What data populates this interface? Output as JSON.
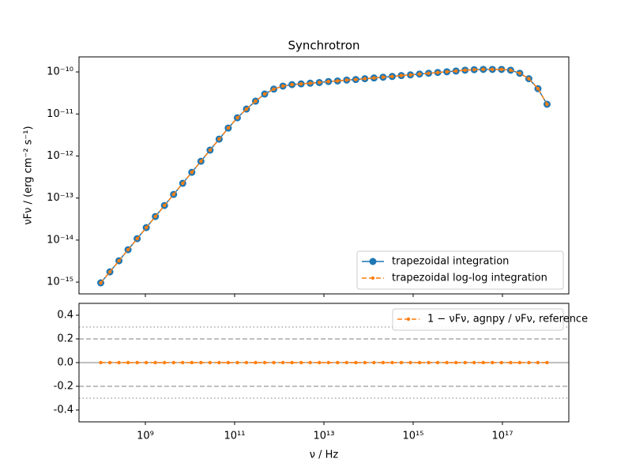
{
  "chart_data": [
    {
      "type": "line",
      "title": "Synchrotron",
      "ylabel": "νFν / (erg cm⁻² s⁻¹)",
      "xscale": "log",
      "yscale": "log",
      "xlim": [
        32600000.0,
        3.07e+18
      ],
      "ylim": [
        5.25e-16,
        2.28e-10
      ],
      "yticks": [
        {
          "value": 1e-15,
          "label": "10⁻¹⁵"
        },
        {
          "value": 1e-14,
          "label": "10⁻¹⁴"
        },
        {
          "value": 1e-13,
          "label": "10⁻¹³"
        },
        {
          "value": 1e-12,
          "label": "10⁻¹²"
        },
        {
          "value": 1e-11,
          "label": "10⁻¹¹"
        },
        {
          "value": 1e-10,
          "label": "10⁻¹⁰"
        }
      ],
      "legend": "lower right",
      "x": [
        100000000.0,
        160000000.0,
        256000000.0,
        409500000.0,
        655100000.0,
        1048000000.0,
        1677000000.0,
        2683000000.0,
        4292000000.0,
        6866000000.0,
        10990000000.0,
        17580000000.0,
        28120000000.0,
        44980000000.0,
        71970000000.0,
        115100000000.0,
        184200000000.0,
        294700000000.0,
        471500000000.0,
        754300000000.0,
        1207000000000.0,
        1931000000000.0,
        3089000000000.0,
        4942000000000.0,
        7906000000000.0,
        12650000000000.0,
        20240000000000.0,
        32370000000000.0,
        51790000000000.0,
        82860000000000.0,
        132600000000000.0,
        212100000000000.0,
        339300000000000.0,
        542900000000000.0,
        868500000000000.0,
        1389000000000000.0,
        2223000000000000.0,
        3556000000000000.0,
        5690000000000000.0,
        9103000000000000.0,
        1.456e+16,
        2.33e+16,
        3.728e+16,
        5.964e+16,
        9.541e+16,
        1.526e+17,
        2.442e+17,
        3.907e+17,
        6.251e+17,
        1e+18
      ],
      "series": [
        {
          "name": "trapezoidal integration",
          "color": "#1f77b4",
          "linestyle": "solid",
          "marker": "large",
          "values": [
            9.6e-16,
            1.75e-15,
            3.22e-15,
            5.9e-15,
            1.08e-14,
            1.98e-14,
            3.63e-14,
            6.65e-14,
            1.22e-13,
            2.24e-13,
            4.1e-13,
            7.5e-13,
            1.38e-12,
            2.52e-12,
            4.62e-12,
            8.1e-12,
            1.31e-11,
            2.02e-11,
            2.98e-11,
            3.9e-11,
            4.6e-11,
            5e-11,
            5.2e-11,
            5.4e-11,
            5.6e-11,
            5.9e-11,
            6.1e-11,
            6.4e-11,
            6.6e-11,
            6.9e-11,
            7.2e-11,
            7.5e-11,
            7.8e-11,
            8.2e-11,
            8.5e-11,
            8.9e-11,
            9.3e-11,
            9.7e-11,
            1.01e-10,
            1.05e-10,
            1.1e-10,
            1.13e-10,
            1.15e-10,
            1.15e-10,
            1.15e-10,
            1.1e-10,
            9.3e-11,
            6.9e-11,
            4e-11,
            1.7e-11
          ]
        },
        {
          "name": "trapezoidal log-log integration",
          "color": "#ff7f0e",
          "linestyle": "dashed",
          "marker": "small",
          "values": [
            9.6e-16,
            1.75e-15,
            3.22e-15,
            5.9e-15,
            1.08e-14,
            1.98e-14,
            3.63e-14,
            6.65e-14,
            1.22e-13,
            2.24e-13,
            4.1e-13,
            7.5e-13,
            1.38e-12,
            2.52e-12,
            4.62e-12,
            8.1e-12,
            1.31e-11,
            2.02e-11,
            2.98e-11,
            3.9e-11,
            4.6e-11,
            5e-11,
            5.2e-11,
            5.4e-11,
            5.6e-11,
            5.9e-11,
            6.1e-11,
            6.4e-11,
            6.6e-11,
            6.9e-11,
            7.2e-11,
            7.5e-11,
            7.8e-11,
            8.2e-11,
            8.5e-11,
            8.9e-11,
            9.3e-11,
            9.7e-11,
            1.01e-10,
            1.05e-10,
            1.1e-10,
            1.13e-10,
            1.15e-10,
            1.15e-10,
            1.15e-10,
            1.1e-10,
            9.3e-11,
            6.9e-11,
            4e-11,
            1.7e-11
          ]
        }
      ]
    },
    {
      "type": "line",
      "xlabel": "ν / Hz",
      "xscale": "log",
      "yscale": "linear",
      "xlim": [
        32600000.0,
        3.07e+18
      ],
      "ylim": [
        -0.5,
        0.5
      ],
      "xticks": [
        {
          "value": 1000000000.0,
          "label": "10⁹"
        },
        {
          "value": 100000000000.0,
          "label": "10¹¹"
        },
        {
          "value": 10000000000000.0,
          "label": "10¹³"
        },
        {
          "value": 1000000000000000.0,
          "label": "10¹⁵"
        },
        {
          "value": 1e+17,
          "label": "10¹⁷"
        }
      ],
      "yticks": [
        -0.4,
        -0.2,
        {
          "value": 0,
          "label": "0.0"
        },
        0.2,
        0.4
      ],
      "hlines": [
        {
          "y": 0,
          "style": "solid"
        },
        {
          "y": 0.2,
          "style": "dashed"
        },
        {
          "y": -0.2,
          "style": "dashed"
        },
        {
          "y": 0.3,
          "style": "dotted"
        },
        {
          "y": -0.3,
          "style": "dotted"
        }
      ],
      "legend": "upper right",
      "x": [
        100000000.0,
        160000000.0,
        256000000.0,
        409500000.0,
        655100000.0,
        1048000000.0,
        1677000000.0,
        2683000000.0,
        4292000000.0,
        6866000000.0,
        10990000000.0,
        17580000000.0,
        28120000000.0,
        44980000000.0,
        71970000000.0,
        115100000000.0,
        184200000000.0,
        294700000000.0,
        471500000000.0,
        754300000000.0,
        1207000000000.0,
        1931000000000.0,
        3089000000000.0,
        4942000000000.0,
        7906000000000.0,
        12650000000000.0,
        20240000000000.0,
        32370000000000.0,
        51790000000000.0,
        82860000000000.0,
        132600000000000.0,
        212100000000000.0,
        339300000000000.0,
        542900000000000.0,
        868500000000000.0,
        1389000000000000.0,
        2223000000000000.0,
        3556000000000000.0,
        5690000000000000.0,
        9103000000000000.0,
        1.456e+16,
        2.33e+16,
        3.728e+16,
        5.964e+16,
        9.541e+16,
        1.526e+17,
        2.442e+17,
        3.907e+17,
        6.251e+17,
        1e+18
      ],
      "series": [
        {
          "name": "1 − νFν, agnpy / νFν, reference",
          "color": "#ff7f0e",
          "linestyle": "dashed",
          "marker": "small",
          "values": [
            0,
            0,
            0,
            0,
            0,
            0,
            0,
            0,
            0,
            0,
            0,
            0,
            0,
            0,
            0,
            0,
            0,
            0,
            0,
            0,
            0,
            0,
            0,
            0,
            0,
            0,
            0,
            0,
            0,
            0,
            0,
            0,
            0,
            0,
            0,
            0,
            0,
            0,
            0,
            0,
            0,
            0,
            0,
            0,
            0,
            0,
            0,
            0,
            0,
            0
          ]
        }
      ]
    }
  ]
}
